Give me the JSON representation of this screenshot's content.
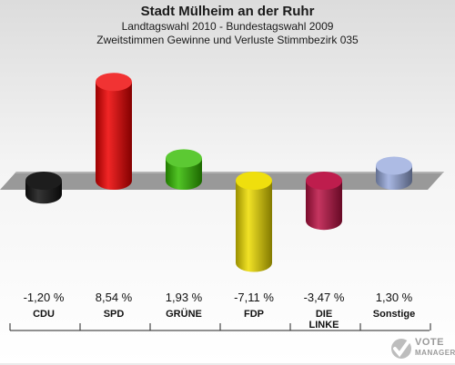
{
  "header": {
    "title": "Stadt Mülheim an der Ruhr",
    "line1": "Landtagswahl 2010 - Bundestagswahl 2009",
    "line2": "Zweitstimmen Gewinne und Verluste Stimmbezirk 035"
  },
  "chart_data": {
    "type": "bar",
    "title": "Stadt Mülheim an der Ruhr",
    "subtitle": "Landtagswahl 2010 - Bundestagswahl 2009 / Zweitstimmen Gewinne und Verluste Stimmbezirk 035",
    "categories": [
      "CDU",
      "SPD",
      "GRÜNE",
      "FDP",
      "DIE LINKE",
      "Sonstige"
    ],
    "category_lines": [
      [
        "CDU"
      ],
      [
        "SPD"
      ],
      [
        "GRÜNE"
      ],
      [
        "FDP"
      ],
      [
        "DIE",
        "LINKE"
      ],
      [
        "Sonstige"
      ]
    ],
    "values": [
      -1.2,
      8.54,
      1.93,
      -7.11,
      -3.47,
      1.3
    ],
    "value_labels": [
      "-1,20 %",
      "8,54 %",
      "1,93 %",
      "-7,11 %",
      "-3,47 %",
      "1,30 %"
    ],
    "colors": [
      "#111111",
      "#ee0000",
      "#33bb00",
      "#eedd00",
      "#bb1144",
      "#99aadd"
    ],
    "ylim": [
      -9,
      9.5
    ],
    "grid": false
  },
  "logo": {
    "line1": "VOTE",
    "line2": "MANAGER"
  }
}
